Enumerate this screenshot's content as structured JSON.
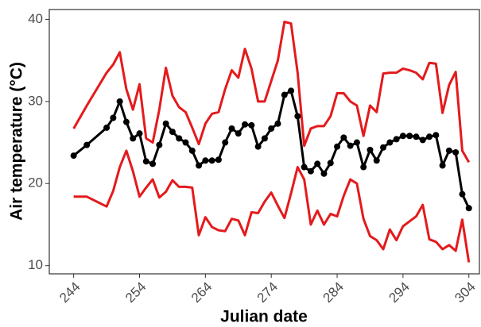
{
  "chart_data": {
    "type": "line",
    "x_label": "Julian date",
    "y_label": "Air temperature (°C)",
    "x": [
      244,
      246,
      249,
      250,
      251,
      252,
      253,
      254,
      255,
      256,
      257,
      258,
      259,
      260,
      261,
      262,
      263,
      264,
      265,
      266,
      267,
      268,
      269,
      270,
      271,
      272,
      273,
      274,
      275,
      276,
      277,
      278,
      279,
      280,
      281,
      282,
      283,
      284,
      285,
      286,
      287,
      288,
      289,
      290,
      291,
      292,
      293,
      294,
      295,
      296,
      297,
      298,
      299,
      300,
      301,
      302,
      303,
      304
    ],
    "series": [
      {
        "color": "#e41a1c",
        "markers": false,
        "values": [
          26.7,
          29.5,
          33.5,
          34.5,
          36.0,
          31.5,
          29.0,
          32.1,
          25.5,
          25.0,
          29.0,
          34.1,
          30.7,
          29.3,
          28.7,
          26.8,
          24.8,
          27.3,
          28.5,
          28.7,
          31.5,
          33.8,
          32.9,
          36.4,
          34.0,
          30.0,
          30.0,
          32.5,
          35.0,
          39.7,
          39.5,
          33.5,
          24.6,
          26.7,
          27.0,
          27.0,
          28.2,
          31.0,
          31.0,
          30.0,
          29.5,
          25.8,
          29.5,
          28.7,
          33.4,
          33.5,
          33.5,
          34.0,
          33.8,
          33.5,
          32.7,
          34.7,
          34.6,
          28.6,
          32.0,
          33.6,
          24.0,
          22.6
        ]
      },
      {
        "color": "#000000",
        "markers": true,
        "values": [
          23.4,
          24.7,
          26.8,
          28.0,
          30.0,
          27.5,
          25.5,
          26.1,
          22.7,
          22.4,
          24.7,
          27.3,
          26.3,
          25.5,
          25.0,
          24.0,
          22.2,
          22.8,
          22.8,
          22.9,
          25.0,
          26.7,
          26.1,
          27.2,
          27.1,
          24.5,
          25.5,
          26.7,
          27.3,
          30.8,
          31.3,
          28.2,
          22.0,
          21.5,
          22.4,
          21.2,
          22.5,
          24.5,
          25.6,
          24.6,
          25.0,
          22.0,
          24.1,
          22.8,
          24.4,
          25.0,
          25.4,
          25.8,
          25.8,
          25.7,
          25.3,
          25.7,
          25.9,
          22.2,
          24.0,
          23.8,
          18.7,
          17.0
        ]
      },
      {
        "color": "#e41a1c",
        "markers": false,
        "values": [
          18.4,
          18.4,
          17.2,
          19.1,
          22.0,
          24.0,
          21.5,
          18.4,
          19.5,
          20.5,
          18.3,
          19.0,
          20.4,
          19.6,
          19.6,
          19.5,
          13.7,
          15.9,
          14.7,
          14.3,
          14.2,
          15.7,
          15.5,
          13.7,
          16.5,
          16.4,
          17.8,
          18.9,
          17.3,
          15.8,
          18.8,
          22.0,
          20.5,
          15.0,
          16.7,
          15.0,
          16.3,
          16.0,
          18.5,
          20.5,
          20.0,
          15.7,
          13.6,
          13.1,
          12.0,
          14.4,
          13.1,
          14.8,
          15.4,
          16.0,
          17.4,
          13.2,
          12.9,
          12.0,
          12.5,
          11.8,
          15.6,
          10.4
        ]
      }
    ],
    "xlim": [
      240.3,
      305.6
    ],
    "xticks": [
      244,
      254,
      264,
      274,
      284,
      294,
      304
    ],
    "ylim": [
      9.0,
      41.2
    ],
    "yticks": [
      10,
      20,
      30,
      40
    ]
  }
}
